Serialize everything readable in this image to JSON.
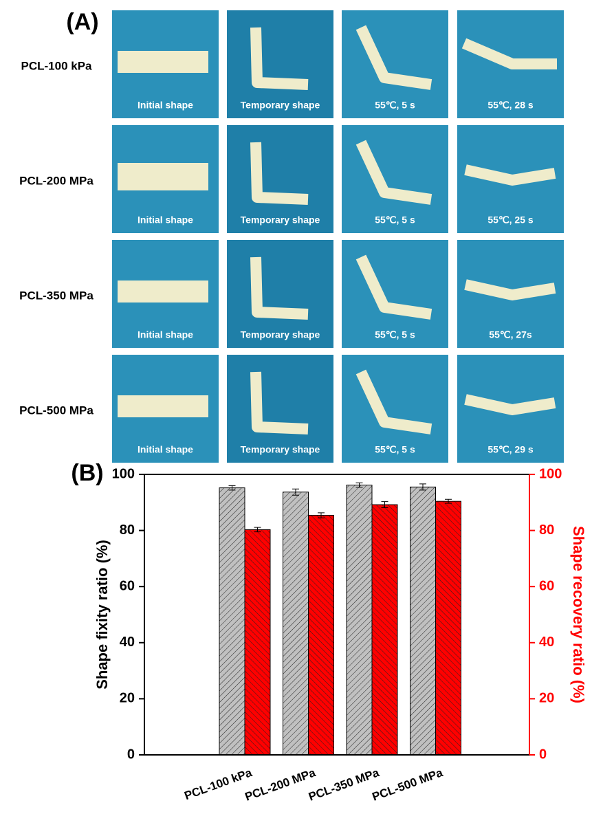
{
  "panel_a": {
    "label": "(A)",
    "rows": [
      {
        "label": "PCL-100 kPa",
        "captions": [
          "Initial shape",
          "Temporary shape",
          "55℃, 5 s",
          "55℃, 28 s"
        ]
      },
      {
        "label": "PCL-200 MPa",
        "captions": [
          "Initial shape",
          "Temporary shape",
          "55℃, 5 s",
          "55℃, 25 s"
        ]
      },
      {
        "label": "PCL-350 MPa",
        "captions": [
          "Initial shape",
          "Temporary shape",
          "55℃, 5 s",
          "55℃, 27s"
        ]
      },
      {
        "label": "PCL-500 MPa",
        "captions": [
          "Initial shape",
          "Temporary shape",
          "55℃, 5 s",
          "55℃, 29 s"
        ]
      }
    ]
  },
  "chart_data": {
    "type": "bar",
    "label": "(B)",
    "categories": [
      "PCL-100 kPa",
      "PCL-200 MPa",
      "PCL-350 MPa",
      "PCL-500 MPa"
    ],
    "ylabel": "Shape fixity ratio (%)",
    "y2label": "Shape recovery ratio (%)",
    "ylim": [
      0,
      100
    ],
    "yticks": [
      0,
      20,
      40,
      60,
      80,
      100
    ],
    "y2lim": [
      0,
      100
    ],
    "y2ticks": [
      0,
      20,
      40,
      60,
      80,
      100
    ],
    "y2color": "#ff0000",
    "series": [
      {
        "color": "#c0c0c0",
        "values": [
          95.2,
          93.7,
          96.2,
          95.5
        ],
        "errors": [
          0.8,
          1.1,
          0.8,
          1.1
        ]
      },
      {
        "color": "#ff0000",
        "axis": "y2",
        "values": [
          80.3,
          85.4,
          89.2,
          90.4
        ],
        "errors": [
          0.8,
          0.9,
          1.1,
          0.7
        ]
      }
    ]
  }
}
